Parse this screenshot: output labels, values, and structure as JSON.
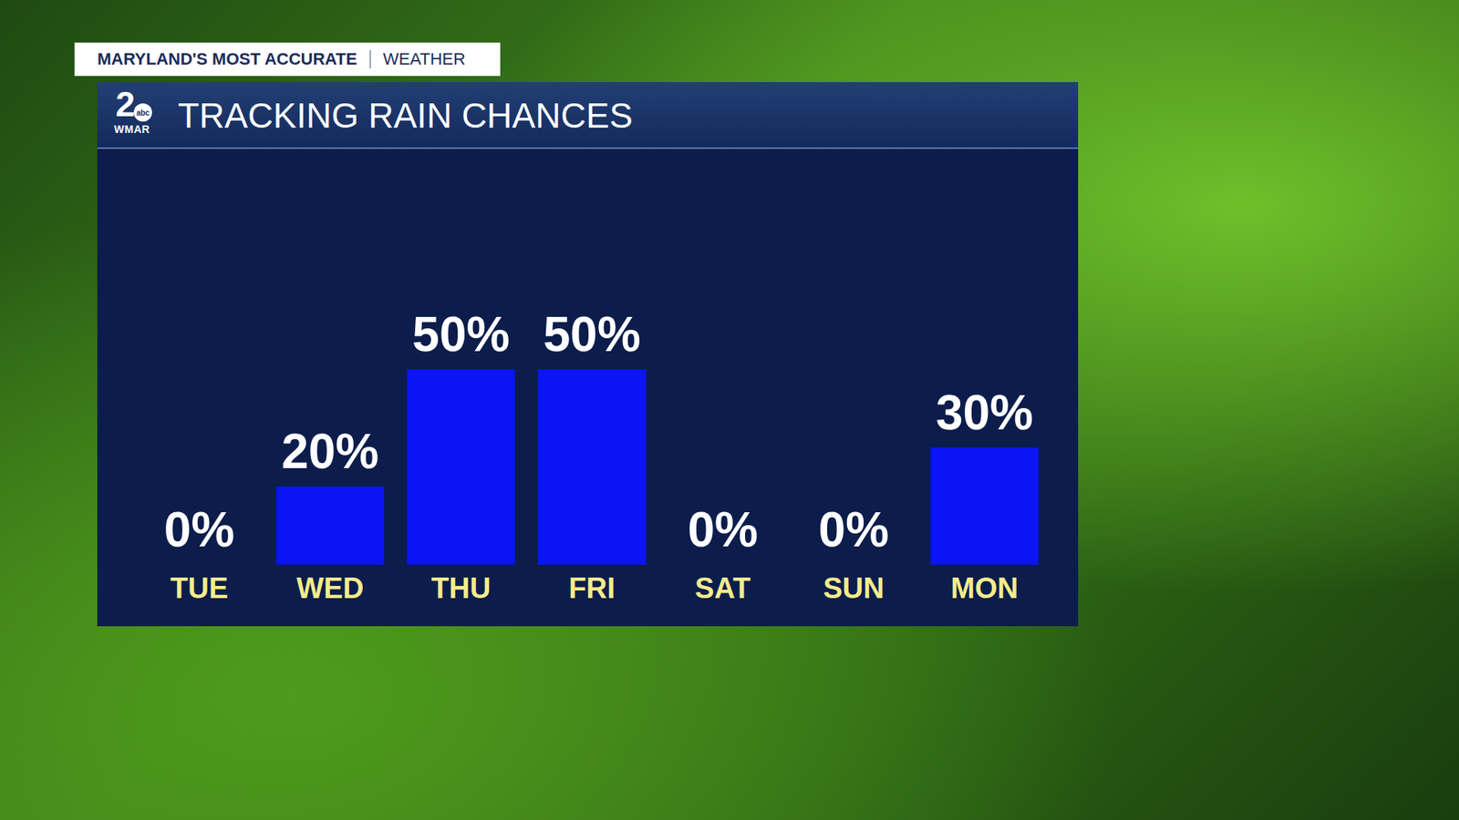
{
  "header": {
    "tagline": "MARYLAND'S MOST ACCURATE",
    "section": "WEATHER",
    "logo": {
      "number": "2",
      "network": "abc",
      "station": "WMAR"
    }
  },
  "chart_data": {
    "type": "bar",
    "title": "TRACKING RAIN CHANCES",
    "categories": [
      "TUE",
      "WED",
      "THU",
      "FRI",
      "SAT",
      "SUN",
      "MON"
    ],
    "values": [
      0,
      20,
      50,
      50,
      0,
      0,
      30
    ],
    "value_labels": [
      "0%",
      "20%",
      "50%",
      "50%",
      "0%",
      "0%",
      "30%"
    ],
    "color": "#0a14f5",
    "ylim": [
      0,
      100
    ],
    "grid": false,
    "data_labels": true,
    "tick_labels": "x"
  }
}
